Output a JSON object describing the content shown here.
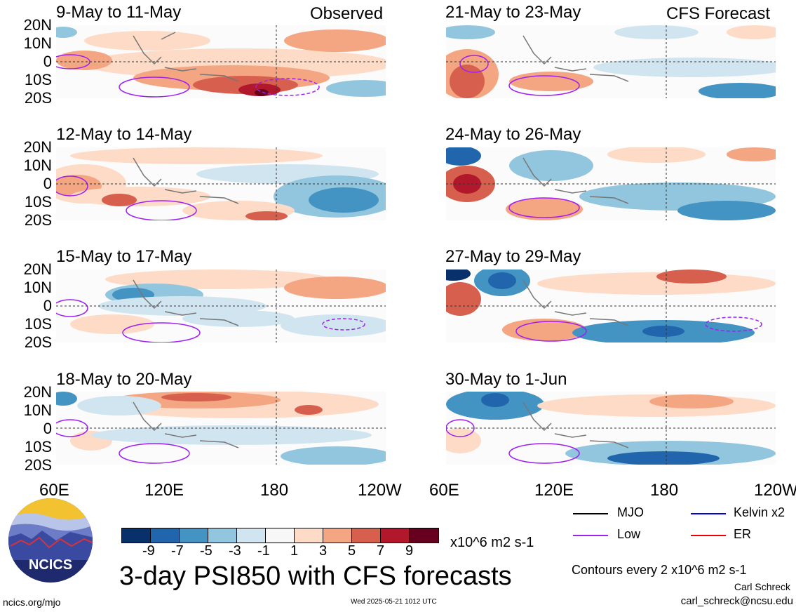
{
  "panels": [
    {
      "title": "9-May to 11-May",
      "tag": "Observed"
    },
    {
      "title": "12-May to 14-May",
      "tag": ""
    },
    {
      "title": "15-May to 17-May",
      "tag": ""
    },
    {
      "title": "18-May to 20-May",
      "tag": ""
    },
    {
      "title": "21-May to 23-May",
      "tag": "CFS Forecast"
    },
    {
      "title": "24-May to 26-May",
      "tag": ""
    },
    {
      "title": "27-May to 29-May",
      "tag": ""
    },
    {
      "title": "30-May to 1-Jun",
      "tag": ""
    }
  ],
  "lat_labels": [
    "20N",
    "10N",
    "0",
    "10S",
    "20S"
  ],
  "lon_labels": [
    "60E",
    "120E",
    "180",
    "120W"
  ],
  "colorbar": {
    "colors": [
      "#08306b",
      "#2166ac",
      "#4393c3",
      "#92c5de",
      "#d1e5f0",
      "#f7f7f7",
      "#fddbc7",
      "#f4a582",
      "#d6604d",
      "#b2182b",
      "#67001f"
    ],
    "tick_labels": [
      "-9",
      "-7",
      "-5",
      "-3",
      "-1",
      "1",
      "3",
      "5",
      "7",
      "9"
    ],
    "units": "x10^6 m2 s-1"
  },
  "legend": {
    "items": [
      {
        "label": "MJO",
        "color": "#000000"
      },
      {
        "label": "Kelvin x2",
        "color": "#0000ee"
      },
      {
        "label": "Low",
        "color": "#a020f0"
      },
      {
        "label": "ER",
        "color": "#ee0000"
      }
    ]
  },
  "title": "3-day PSI850 with CFS forecasts",
  "contour_note": "Contours every 2 x10^6 m2 s-1",
  "logo_text": "NCICS",
  "author": "Carl Schreck",
  "email": "carl_schreck@ncsu.edu",
  "url": "ncics.org/mjo",
  "timestamp": "Wed 2025-05-21 1012 UTC"
}
